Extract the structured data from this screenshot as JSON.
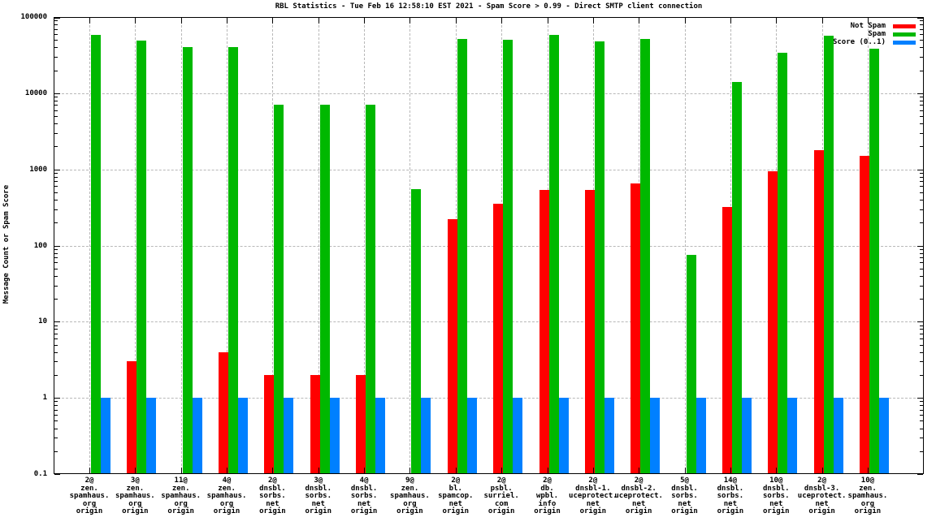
{
  "page": {
    "background": "#ffffff"
  },
  "chart_data": {
    "type": "bar",
    "title": "RBL Statistics - Tue Feb 16 12:58:10 EST 2021 - Spam Score > 0.99 - Direct SMTP client connection",
    "ylabel": "Message Count or Spam Score",
    "xlabel": "",
    "y_scale": "log",
    "ylim": [
      0.1,
      100000
    ],
    "yticks": [
      0.1,
      1,
      10,
      100,
      1000,
      10000,
      100000
    ],
    "ytick_labels": [
      "0.1",
      "1",
      "10",
      "100",
      "1000",
      "10000",
      "100000"
    ],
    "grid": true,
    "legend_position": "top-right",
    "colors": {
      "not_spam": "#ff0000",
      "spam": "#00b800",
      "score": "#0080ff",
      "grid": "#b8b8b8",
      "axis": "#000000"
    },
    "categories": [
      [
        "2@",
        "zen.",
        "spamhaus.",
        "org",
        "origin"
      ],
      [
        "3@",
        "zen.",
        "spamhaus.",
        "org",
        "origin"
      ],
      [
        "11@",
        "zen.",
        "spamhaus.",
        "org",
        "origin"
      ],
      [
        "4@",
        "zen.",
        "spamhaus.",
        "org",
        "origin"
      ],
      [
        "2@",
        "dnsbl.",
        "sorbs.",
        "net",
        "origin"
      ],
      [
        "3@",
        "dnsbl.",
        "sorbs.",
        "net",
        "origin"
      ],
      [
        "4@",
        "dnsbl.",
        "sorbs.",
        "net",
        "origin"
      ],
      [
        "9@",
        "zen.",
        "spamhaus.",
        "org",
        "origin"
      ],
      [
        "2@",
        "bl.",
        "spamcop.",
        "net",
        "origin"
      ],
      [
        "2@",
        "psbl.",
        "surriel.",
        "com",
        "origin"
      ],
      [
        "2@",
        "db.",
        "wpbl.",
        "info",
        "origin"
      ],
      [
        "2@",
        "dnsbl-1.",
        "uceprotect.",
        "net",
        "origin"
      ],
      [
        "2@",
        "dnsbl-2.",
        "uceprotect.",
        "net",
        "origin"
      ],
      [
        "5@",
        "dnsbl.",
        "sorbs.",
        "net",
        "origin"
      ],
      [
        "14@",
        "dnsbl.",
        "sorbs.",
        "net",
        "origin"
      ],
      [
        "10@",
        "dnsbl.",
        "sorbs.",
        "net",
        "origin"
      ],
      [
        "2@",
        "dnsbl-3.",
        "uceprotect.",
        "net",
        "origin"
      ],
      [
        "10@",
        "zen.",
        "spamhaus.",
        "org",
        "origin"
      ]
    ],
    "series": [
      {
        "name": "Not Spam",
        "color": "#ff0000",
        "values": [
          0,
          3,
          0,
          4,
          2,
          2,
          2,
          0,
          220,
          350,
          540,
          540,
          650,
          0,
          320,
          950,
          1800,
          1500
        ]
      },
      {
        "name": "Spam",
        "color": "#00b800",
        "values": [
          59000,
          49000,
          40000,
          40000,
          7000,
          7000,
          7000,
          550,
          52000,
          50000,
          59000,
          48000,
          52000,
          75,
          14000,
          34000,
          57000,
          38000
        ]
      },
      {
        "name": "Score (0..1)",
        "color": "#0080ff",
        "values": [
          1,
          1,
          1,
          1,
          1,
          1,
          1,
          1,
          1,
          1,
          1,
          1,
          1,
          1,
          1,
          1,
          1,
          1
        ]
      }
    ]
  }
}
